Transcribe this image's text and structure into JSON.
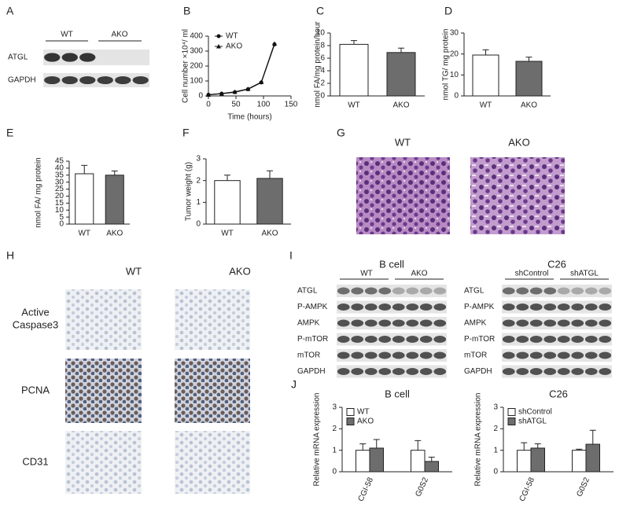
{
  "panel_letters": [
    "A",
    "B",
    "C",
    "D",
    "E",
    "F",
    "G",
    "H",
    "I",
    "J"
  ],
  "blot_a": {
    "groups": [
      "WT",
      "AKO"
    ],
    "rows": [
      "ATGL",
      "GAPDH"
    ]
  },
  "histology_g": {
    "columns": [
      "WT",
      "AKO"
    ]
  },
  "ihc_h": {
    "columns": [
      "WT",
      "AKO"
    ],
    "rows": [
      [
        "Active",
        "Caspase3"
      ],
      [
        "PCNA"
      ],
      [
        "CD31"
      ]
    ]
  },
  "blot_i": [
    {
      "title": "B cell",
      "groups": [
        "WT",
        "AKO"
      ],
      "rows": [
        "ATGL",
        "P-AMPK",
        "AMPK",
        "P-mTOR",
        "mTOR",
        "GAPDH"
      ]
    },
    {
      "title": "C26",
      "groups": [
        "shControl",
        "shATGL"
      ],
      "rows": [
        "ATGL",
        "P-AMPK",
        "AMPK",
        "P-mTOR",
        "mTOR",
        "GAPDH"
      ]
    }
  ],
  "chart_data": [
    {
      "type": "line",
      "xlabel": "Time (hours)",
      "ylabel": "Cell number ×10⁴/ ml",
      "xlim": [
        0,
        150
      ],
      "xticks": [
        0,
        50,
        100,
        150
      ],
      "ylim": [
        0,
        400
      ],
      "yticks": [
        0,
        100,
        200,
        300,
        400
      ],
      "x": [
        0,
        24,
        48,
        72,
        96,
        120
      ],
      "series": [
        {
          "name": "WT",
          "color": "#111111",
          "marker": "circle",
          "values": [
            8,
            15,
            25,
            45,
            90,
            345
          ]
        },
        {
          "name": "AKO",
          "color": "#111111",
          "marker": "triangle",
          "values": [
            8,
            16,
            27,
            47,
            92,
            350
          ]
        }
      ]
    },
    {
      "type": "bar",
      "ylabel": "nmol FA/mg protein/hour",
      "categories": [
        "WT",
        "AKO"
      ],
      "values": [
        8.2,
        6.9
      ],
      "errors": [
        0.6,
        0.7
      ],
      "colors": [
        "#ffffff",
        "#6d6d6d"
      ],
      "ylim": [
        0,
        10
      ],
      "yticks": [
        0,
        2,
        4,
        6,
        8,
        10
      ]
    },
    {
      "type": "bar",
      "ylabel": "nmol TG/ mg protein",
      "categories": [
        "WT",
        "AKO"
      ],
      "values": [
        19.5,
        16.5
      ],
      "errors": [
        2.5,
        2
      ],
      "colors": [
        "#ffffff",
        "#6d6d6d"
      ],
      "ylim": [
        0,
        30
      ],
      "yticks": [
        0,
        10,
        20,
        30
      ]
    },
    {
      "type": "bar",
      "ylabel": "nmol FA/ mg protein",
      "categories": [
        "WT",
        "AKO"
      ],
      "values": [
        36,
        35
      ],
      "errors": [
        6,
        3
      ],
      "colors": [
        "#ffffff",
        "#6d6d6d"
      ],
      "ylim": [
        0,
        45
      ],
      "yticks": [
        0,
        5,
        10,
        15,
        20,
        25,
        30,
        35,
        40,
        45
      ]
    },
    {
      "type": "bar",
      "ylabel": "Tumor weight (g)",
      "categories": [
        "WT",
        "AKO"
      ],
      "values": [
        2.0,
        2.1
      ],
      "errors": [
        0.25,
        0.35
      ],
      "colors": [
        "#ffffff",
        "#6d6d6d"
      ],
      "ylim": [
        0,
        3
      ],
      "yticks": [
        0,
        1,
        2,
        3
      ]
    },
    {
      "type": "grouped_bar",
      "title": "B cell",
      "ylabel": "Relative mRNA expression",
      "categories": [
        "CGI-58",
        "G0S2"
      ],
      "ylim": [
        0,
        3
      ],
      "yticks": [
        0,
        1,
        2,
        3
      ],
      "series": [
        {
          "name": "WT",
          "color": "#ffffff",
          "values": [
            1.0,
            1.0
          ],
          "errors": [
            0.3,
            0.45
          ]
        },
        {
          "name": "AKO",
          "color": "#6d6d6d",
          "values": [
            1.1,
            0.48
          ],
          "errors": [
            0.4,
            0.2
          ]
        }
      ]
    },
    {
      "type": "grouped_bar",
      "title": "C26",
      "ylabel": "Relative mRNA expression",
      "categories": [
        "CGI-58",
        "G0S2"
      ],
      "ylim": [
        0,
        3
      ],
      "yticks": [
        0,
        1,
        2,
        3
      ],
      "series": [
        {
          "name": "shControl",
          "color": "#ffffff",
          "values": [
            1.0,
            1.0
          ],
          "errors": [
            0.35,
            0.05
          ]
        },
        {
          "name": "shATGL",
          "color": "#6d6d6d",
          "values": [
            1.1,
            1.28
          ],
          "errors": [
            0.2,
            0.65
          ]
        }
      ]
    }
  ]
}
